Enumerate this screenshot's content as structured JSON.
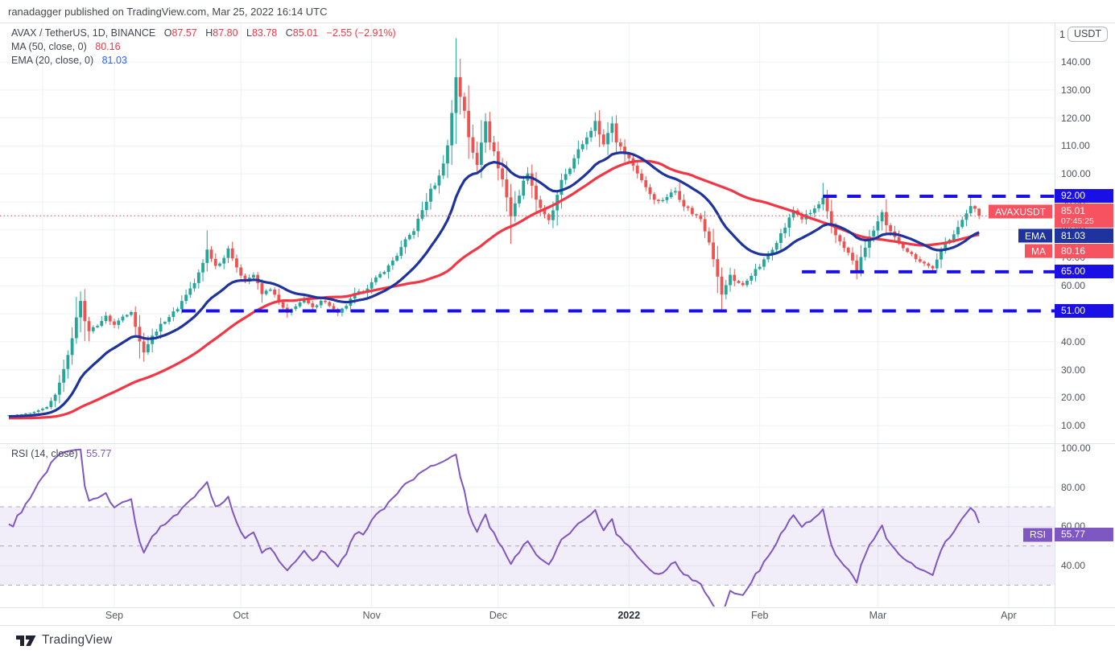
{
  "header": {
    "byline": "ranadagger published on TradingView.com, Mar 25, 2022 16:14 UTC"
  },
  "legend": {
    "symbol": "AVAX / TetherUS, 1D, BINANCE",
    "ohlc_items": [
      {
        "k": "O",
        "v": "87.57"
      },
      {
        "k": "H",
        "v": "87.80"
      },
      {
        "k": "L",
        "v": "83.78"
      },
      {
        "k": "C",
        "v": "85.01"
      }
    ],
    "change": "−2.55 (−2.91%)",
    "ma_label": "MA (50, close, 0)",
    "ma_value": "80.16",
    "ema_label": "EMA (20, close, 0)",
    "ema_value": "81.03"
  },
  "rsi_legend": {
    "label": "RSI (14, close)",
    "value": "55.77"
  },
  "price_scale": {
    "unit_prefix": "1",
    "unit": "USDT",
    "ticks": [
      {
        "v": 140,
        "t": "140.00"
      },
      {
        "v": 130,
        "t": "130.00"
      },
      {
        "v": 120,
        "t": "120.00"
      },
      {
        "v": 110,
        "t": "110.00"
      },
      {
        "v": 100,
        "t": "100.00"
      },
      {
        "v": 90,
        "t": "90.00"
      },
      {
        "v": 80,
        "t": "80.00"
      },
      {
        "v": 70,
        "t": "70.00"
      },
      {
        "v": 60,
        "t": "60.00"
      },
      {
        "v": 50,
        "t": "50.00"
      },
      {
        "v": 40,
        "t": "40.00"
      },
      {
        "v": 30,
        "t": "30.00"
      },
      {
        "v": 20,
        "t": "20.00"
      },
      {
        "v": 10,
        "t": "10.00"
      }
    ],
    "badges": [
      {
        "id": "res92",
        "value": 92,
        "text": "92.00",
        "bg": "#1a10e6",
        "h": 17
      },
      {
        "id": "last",
        "value": 85.01,
        "text": "85.01",
        "sub": "07:45:25",
        "tag": "AVAXUSDT",
        "bg": "#f7525f",
        "h": 30
      },
      {
        "id": "ema",
        "value": 81.03,
        "text": "81.03",
        "tag": "EMA",
        "bg": "#1e339e",
        "h": 18
      },
      {
        "id": "ma",
        "value": 80.16,
        "text": "80.16",
        "tag": "MA",
        "bg": "#f7525f",
        "h": 18
      },
      {
        "id": "sup65",
        "value": 65,
        "text": "65.00",
        "bg": "#1a10e6",
        "h": 17
      },
      {
        "id": "sup51",
        "value": 51,
        "text": "51.00",
        "bg": "#1a10e6",
        "h": 17
      }
    ]
  },
  "rsi_scale": {
    "ticks": [
      {
        "v": 100,
        "t": "100.00"
      },
      {
        "v": 80,
        "t": "80.00"
      },
      {
        "v": 60,
        "t": "60.00"
      },
      {
        "v": 40,
        "t": "40.00"
      }
    ],
    "badge": {
      "value": 55.77,
      "text": "55.77",
      "tag": "RSI",
      "bg": "#7e57c2",
      "h": 17
    },
    "guides": [
      70,
      50,
      30
    ],
    "band": [
      30,
      70
    ]
  },
  "time_scale": {
    "labels": [
      {
        "d": 25,
        "label": "Sep",
        "year": false
      },
      {
        "d": 55,
        "label": "Oct",
        "year": false
      },
      {
        "d": 86,
        "label": "Nov",
        "year": false
      },
      {
        "d": 116,
        "label": "Dec",
        "year": false
      },
      {
        "d": 147,
        "label": "2022",
        "year": true
      },
      {
        "d": 178,
        "label": "Feb",
        "year": false
      },
      {
        "d": 206,
        "label": "Mar",
        "year": false
      },
      {
        "d": 237,
        "label": "Apr",
        "year": false
      }
    ]
  },
  "footer": {
    "logo_text": "TradingView"
  },
  "chart_data": {
    "type": "candlestick",
    "symbol": "AVAXUSDT",
    "pair": "AVAX / TetherUS",
    "exchange": "BINANCE",
    "interval": "1D",
    "last_candle": {
      "o": 87.57,
      "h": 87.8,
      "l": 83.78,
      "c": 85.01,
      "change": -2.55,
      "change_pct": -2.91
    },
    "current_price": 85.01,
    "countdown": "07:45:25",
    "indicators": {
      "ma": {
        "period": 50,
        "source": "close",
        "offset": 0,
        "value": 80.16
      },
      "ema": {
        "period": 20,
        "source": "close",
        "offset": 0,
        "value": 81.03
      },
      "rsi": {
        "period": 14,
        "source": "close",
        "value": 55.77,
        "overbought": 70,
        "oversold": 30
      }
    },
    "levels": [
      {
        "price": 92,
        "from_d": 193
      },
      {
        "price": 65,
        "from_d": 188
      },
      {
        "price": 51,
        "from_d": 41
      }
    ],
    "price_axis_range": [
      5.5,
      154
    ],
    "rsi_axis_range": [
      18,
      102
    ],
    "pre_anchors": [
      [
        -55,
        15.5
      ],
      [
        -45,
        13.0
      ],
      [
        -35,
        11.8
      ],
      [
        -25,
        12.3
      ],
      [
        -15,
        12.0
      ],
      [
        -8,
        13.5
      ],
      [
        -4,
        14.2
      ],
      [
        -1,
        13.8
      ]
    ],
    "close_anchors": [
      [
        0,
        13.6
      ],
      [
        3,
        14.0
      ],
      [
        6,
        14.8
      ],
      [
        9,
        16.5
      ],
      [
        11,
        21
      ],
      [
        13,
        30
      ],
      [
        15,
        41
      ],
      [
        16,
        49
      ],
      [
        17,
        55
      ],
      [
        18,
        47
      ],
      [
        19,
        44
      ],
      [
        21,
        46
      ],
      [
        23,
        49
      ],
      [
        25,
        46
      ],
      [
        27,
        49
      ],
      [
        29,
        51
      ],
      [
        31,
        40
      ],
      [
        32,
        36.5
      ],
      [
        34,
        42
      ],
      [
        36,
        46
      ],
      [
        38,
        49
      ],
      [
        40,
        52
      ],
      [
        42,
        57
      ],
      [
        44,
        61
      ],
      [
        46,
        68
      ],
      [
        47,
        73
      ],
      [
        49,
        67
      ],
      [
        51,
        70
      ],
      [
        52,
        74
      ],
      [
        54,
        66
      ],
      [
        56,
        62
      ],
      [
        58,
        64
      ],
      [
        60,
        57
      ],
      [
        62,
        59
      ],
      [
        64,
        54
      ],
      [
        66,
        50
      ],
      [
        68,
        53
      ],
      [
        70,
        55
      ],
      [
        72,
        52
      ],
      [
        74,
        55
      ],
      [
        76,
        53
      ],
      [
        78,
        50
      ],
      [
        80,
        53
      ],
      [
        82,
        57
      ],
      [
        84,
        58
      ],
      [
        86,
        61
      ],
      [
        88,
        64
      ],
      [
        90,
        67
      ],
      [
        92,
        71
      ],
      [
        94,
        76
      ],
      [
        96,
        80
      ],
      [
        98,
        87
      ],
      [
        100,
        94
      ],
      [
        102,
        99
      ],
      [
        104,
        110
      ],
      [
        105,
        122
      ],
      [
        106,
        135
      ],
      [
        107,
        128
      ],
      [
        108,
        122
      ],
      [
        109,
        113
      ],
      [
        110,
        108
      ],
      [
        111,
        104
      ],
      [
        112,
        112
      ],
      [
        113,
        118
      ],
      [
        114,
        112
      ],
      [
        115,
        108
      ],
      [
        116,
        102
      ],
      [
        117,
        98
      ],
      [
        118,
        92
      ],
      [
        119,
        85
      ],
      [
        120,
        89
      ],
      [
        121,
        93
      ],
      [
        122,
        97
      ],
      [
        123,
        101
      ],
      [
        124,
        96
      ],
      [
        125,
        91
      ],
      [
        126,
        88
      ],
      [
        127,
        85
      ],
      [
        128,
        83
      ],
      [
        129,
        87
      ],
      [
        130,
        92
      ],
      [
        131,
        97
      ],
      [
        132,
        100
      ],
      [
        134,
        105
      ],
      [
        136,
        111
      ],
      [
        138,
        116
      ],
      [
        139,
        120
      ],
      [
        140,
        114
      ],
      [
        141,
        110
      ],
      [
        142,
        115
      ],
      [
        143,
        118
      ],
      [
        144,
        112
      ],
      [
        145,
        109
      ],
      [
        146,
        108
      ],
      [
        148,
        103
      ],
      [
        150,
        98
      ],
      [
        152,
        93
      ],
      [
        154,
        90
      ],
      [
        156,
        92
      ],
      [
        158,
        94
      ],
      [
        160,
        89
      ],
      [
        162,
        86
      ],
      [
        164,
        84
      ],
      [
        166,
        76
      ],
      [
        167,
        70
      ],
      [
        168,
        63
      ],
      [
        169,
        57
      ],
      [
        170,
        60
      ],
      [
        171,
        64
      ],
      [
        172,
        62
      ],
      [
        174,
        60
      ],
      [
        176,
        64
      ],
      [
        178,
        67
      ],
      [
        180,
        71
      ],
      [
        182,
        76
      ],
      [
        184,
        81
      ],
      [
        186,
        87
      ],
      [
        188,
        84
      ],
      [
        190,
        86
      ],
      [
        192,
        89
      ],
      [
        193,
        91
      ],
      [
        194,
        86
      ],
      [
        195,
        81
      ],
      [
        196,
        78
      ],
      [
        198,
        74
      ],
      [
        200,
        69
      ],
      [
        201,
        65
      ],
      [
        202,
        70
      ],
      [
        203,
        74
      ],
      [
        204,
        77
      ],
      [
        206,
        83
      ],
      [
        207,
        86
      ],
      [
        208,
        81
      ],
      [
        210,
        77
      ],
      [
        212,
        74
      ],
      [
        214,
        71
      ],
      [
        216,
        69
      ],
      [
        218,
        67
      ],
      [
        219,
        66.5
      ],
      [
        220,
        69
      ],
      [
        221,
        72
      ],
      [
        222,
        75
      ],
      [
        224,
        79
      ],
      [
        226,
        83
      ],
      [
        227,
        86
      ],
      [
        228,
        88.5
      ],
      [
        229,
        87.56
      ],
      [
        230,
        85.01
      ]
    ],
    "wick_overrides": {
      "31": {
        "l": 34
      },
      "47": {
        "h": 79.8
      },
      "106": {
        "h": 148.5
      },
      "119": {
        "l": 75
      },
      "169": {
        "l": 51.1
      },
      "193": {
        "h": 96.8
      },
      "201": {
        "l": 62.3
      },
      "219": {
        "l": 64.8
      },
      "228": {
        "h": 91.9
      },
      "230": {
        "o": 87.57,
        "h": 87.8,
        "l": 83.78,
        "c": 85.01
      }
    },
    "colors": {
      "up": "#26a69a",
      "down": "#ef5350",
      "ma": "#f23645",
      "ema": "#1e339e",
      "rsi": "#7e57c2",
      "rsi_band": "rgba(126,87,194,0.10)",
      "rsi_guide": "#9093a0",
      "level": "#1a10e6",
      "last_line": "#f7525f",
      "grid": "#eef0f4",
      "border": "#e0e3eb"
    }
  }
}
